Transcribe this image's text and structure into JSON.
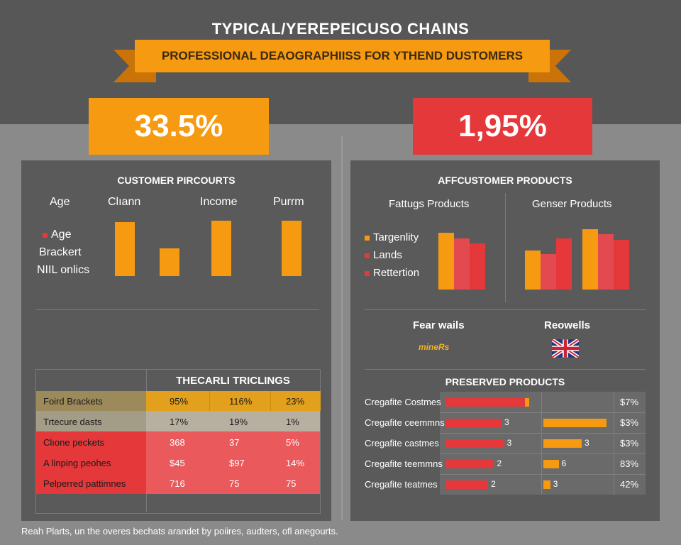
{
  "title": "TYPICAL/YEREPEICUSO CHAINS",
  "subtitle": "PROFESSIONAL DEAOGRAPHIISS FOR YTHEND DUSTOMERS",
  "stats": {
    "left": "33.5%",
    "right": "1,95%"
  },
  "colors": {
    "orange": "#f59a11",
    "red": "#e4383a",
    "dark": "#575757",
    "panel": "#5a5a5a"
  },
  "left_panel": {
    "title": "CUSTOMER PIRCOURTS",
    "col_labels": [
      "Age",
      "Clıann",
      "Income",
      "Purrm"
    ],
    "legend": [
      "Age",
      "Brackert",
      "NIIL onlics"
    ],
    "table": {
      "title": "THECARLI TRICLINGS",
      "rows": [
        {
          "label": "Foird Brackets",
          "c1": "95%",
          "c2": "116%",
          "c3": "23%"
        },
        {
          "label": "Trtecure dasts",
          "c1": "17%",
          "c2": "19%",
          "c3": "1%"
        },
        {
          "label": "Clıone peckets",
          "c1": "368",
          "c2": "37",
          "c3": "5%"
        },
        {
          "label": "A linping peohes",
          "c1": "$45",
          "c2": "$97",
          "c3": "14%"
        },
        {
          "label": "Pelperred pattimnes",
          "c1": "716",
          "c2": "75",
          "c3": "75"
        }
      ]
    }
  },
  "right_panel": {
    "title": "AFFCUSTOMER PRODUCTS",
    "group_labels": [
      "Fattugs Products",
      "Genser Products"
    ],
    "legend": [
      "Targenlity",
      "Lands",
      "Rettertion"
    ],
    "brands": [
      "Fear wails",
      "Reowells"
    ],
    "brand_logo_text": "mineRs",
    "preserved": {
      "title": "PRESERVED PRODUCTS",
      "rows": [
        {
          "label": "Cregafite Costmes",
          "a_label": "",
          "b_label": "",
          "pct": "$7%"
        },
        {
          "label": "Cregafite ceemmns",
          "a_label": "3",
          "b_label": "",
          "pct": "$3%"
        },
        {
          "label": "Cregafite castmes",
          "a_label": "3",
          "b_label": "3",
          "pct": "$3%"
        },
        {
          "label": "Cregafite teemmns",
          "a_label": "2",
          "b_label": "6",
          "pct": "83%"
        },
        {
          "label": "Cregafite teatmes",
          "a_label": "2",
          "b_label": "3",
          "pct": "42%"
        }
      ]
    }
  },
  "footer": "Reah Plarts, un the overes bechats arandet by poiires, audters, ofl anegourts.",
  "chart_data": [
    {
      "type": "bar",
      "title": "CUSTOMER PIRCOURTS",
      "categories": [
        "Age",
        "Clıann",
        "Income",
        "Purrm"
      ],
      "values": [
        85,
        43,
        87,
        87
      ],
      "ylim": [
        0,
        100
      ],
      "grid": false
    },
    {
      "type": "bar",
      "title": "AFFCUSTOMER PRODUCTS",
      "categories": [
        "Fattugs Products",
        "Genser Products"
      ],
      "series": [
        {
          "name": "Targenlity",
          "values": [
            80,
            55
          ]
        },
        {
          "name": "Lands",
          "values": [
            72,
            50
          ]
        },
        {
          "name": "Rettertion",
          "values": [
            65,
            72
          ]
        }
      ],
      "extra_bars": {
        "Genser Products": [
          85,
          78,
          70
        ]
      },
      "ylim": [
        0,
        100
      ],
      "legend": "left",
      "grid": false
    },
    {
      "type": "bar",
      "title": "PRESERVED PRODUCTS",
      "orientation": "horizontal",
      "categories": [
        "Cregafite Costmes",
        "Cregafite ceemmns",
        "Cregafite castmes",
        "Cregafite teemmns",
        "Cregafite teatmes"
      ],
      "series": [
        {
          "values": [
            100,
            67,
            70,
            58,
            51
          ]
        },
        {
          "values": [
            0,
            82,
            50,
            20,
            9
          ]
        }
      ],
      "ylim": [
        0,
        100
      ],
      "grid": true
    }
  ]
}
